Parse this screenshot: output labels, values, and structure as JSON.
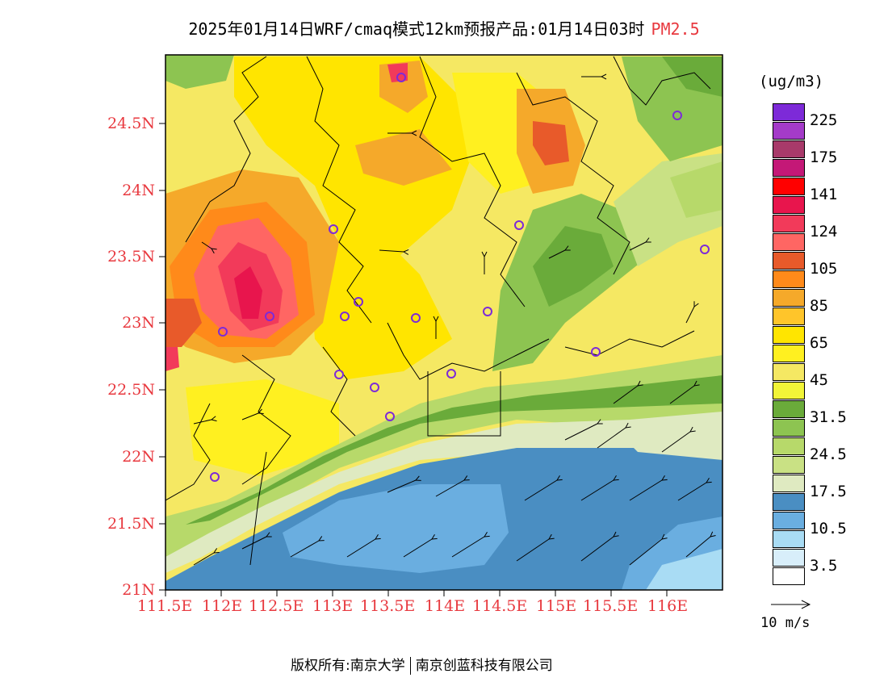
{
  "title": {
    "main": "2025年01月14日WRF/cmaq模式12km预报产品:01月14日03时",
    "pollutant": "PM2.5"
  },
  "axes": {
    "y_labels": [
      "24.5N",
      "24N",
      "23.5N",
      "23N",
      "22.5N",
      "22N",
      "21.5N",
      "21N"
    ],
    "x_labels": [
      "111.5E",
      "112E",
      "112.5E",
      "113E",
      "113.5E",
      "114E",
      "114.5E",
      "115E",
      "115.5E",
      "116E"
    ]
  },
  "legend": {
    "unit": "(ug/m3)",
    "levels": [
      {
        "label": "225",
        "color": "#7d2ad8"
      },
      {
        "label": "",
        "color": "#a43bc9"
      },
      {
        "label": "175",
        "color": "#a83a6a"
      },
      {
        "label": "",
        "color": "#c41877"
      },
      {
        "label": "141",
        "color": "#ff0000"
      },
      {
        "label": "",
        "color": "#e8154d"
      },
      {
        "label": "124",
        "color": "#f23a5a"
      },
      {
        "label": "",
        "color": "#ff6663"
      },
      {
        "label": "105",
        "color": "#e85a2a"
      },
      {
        "label": "",
        "color": "#ff8a1a"
      },
      {
        "label": "85",
        "color": "#f5a92a"
      },
      {
        "label": "",
        "color": "#ffc52a"
      },
      {
        "label": "65",
        "color": "#ffe500"
      },
      {
        "label": "",
        "color": "#fff020"
      },
      {
        "label": "45",
        "color": "#f5e863"
      },
      {
        "label": "",
        "color": "#f2f538"
      },
      {
        "label": "31.5",
        "color": "#6aab3a"
      },
      {
        "label": "",
        "color": "#8dc451"
      },
      {
        "label": "24.5",
        "color": "#b7d96a"
      },
      {
        "label": "",
        "color": "#c9e184"
      },
      {
        "label": "17.5",
        "color": "#dfeac1"
      },
      {
        "label": "",
        "color": "#4a8ec2"
      },
      {
        "label": "10.5",
        "color": "#6aaee0"
      },
      {
        "label": "",
        "color": "#a9dcf4"
      },
      {
        "label": "3.5",
        "color": "#d8eefa"
      },
      {
        "label": "",
        "color": "#ffffff"
      }
    ]
  },
  "vector_scale": {
    "label": "10 m/s"
  },
  "footer": {
    "left": "版权所有:南京大学",
    "right": "南京创蓝科技有限公司"
  }
}
